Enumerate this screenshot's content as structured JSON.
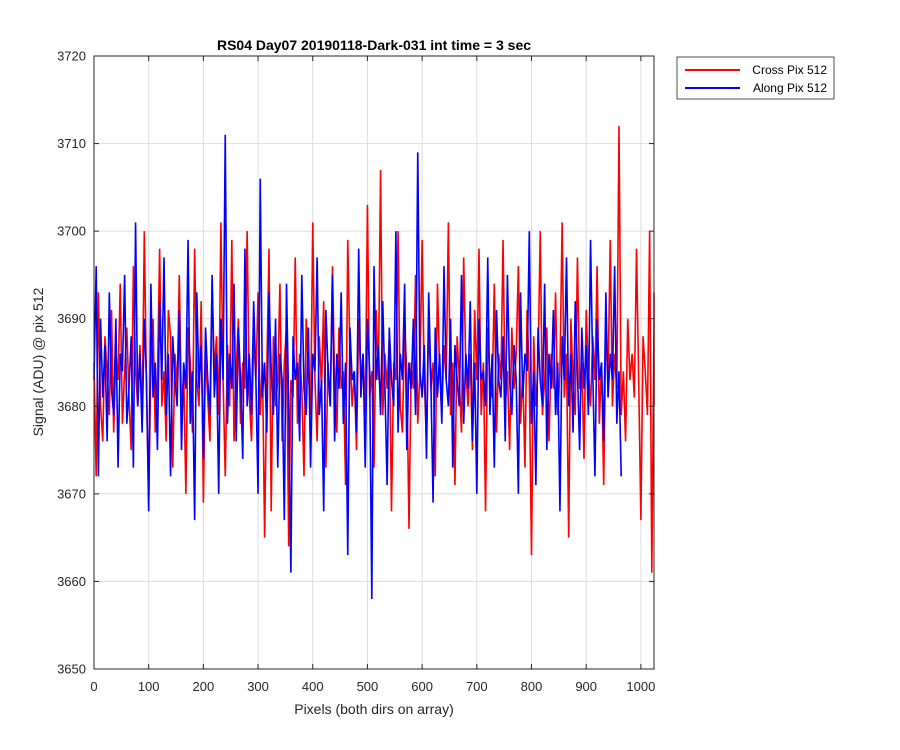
{
  "chart_data": {
    "type": "line",
    "title": "RS04 Day07 20190118-Dark-031 int time = 3 sec",
    "xlabel": "Pixels (both dirs on array)",
    "ylabel": "Signal (ADU) @ pix 512",
    "xlim": [
      0,
      1024
    ],
    "ylim": [
      3650,
      3720
    ],
    "xticks": [
      0,
      100,
      200,
      300,
      400,
      500,
      600,
      700,
      800,
      900,
      1000
    ],
    "yticks": [
      3650,
      3660,
      3670,
      3680,
      3690,
      3700,
      3710,
      3720
    ],
    "xtick_labels": [
      "0",
      "100",
      "200",
      "300",
      "400",
      "500",
      "600",
      "700",
      "800",
      "900",
      "1000"
    ],
    "ytick_labels": [
      "3650",
      "3660",
      "3670",
      "3680",
      "3690",
      "3700",
      "3710",
      "3720"
    ],
    "grid": true,
    "legend_position": "outside-top-right",
    "series": [
      {
        "name": "Cross Pix 512",
        "color": "#ff0000",
        "x_step": 4,
        "values": [
          3685,
          3672,
          3693,
          3680,
          3676,
          3688,
          3684,
          3679,
          3691,
          3677,
          3686,
          3683,
          3694,
          3678,
          3684,
          3689,
          3681,
          3675,
          3696,
          3684,
          3680,
          3687,
          3678,
          3700,
          3682,
          3669,
          3685,
          3690,
          3677,
          3683,
          3698,
          3680,
          3684,
          3676,
          3691,
          3688,
          3673,
          3686,
          3682,
          3695,
          3679,
          3684,
          3670,
          3689,
          3685,
          3677,
          3698,
          3683,
          3680,
          3692,
          3669,
          3686,
          3681,
          3676,
          3694,
          3684,
          3688,
          3679,
          3701,
          3683,
          3672,
          3687,
          3680,
          3699,
          3676,
          3684,
          3690,
          3678,
          3685,
          3682,
          3700,
          3681,
          3676,
          3688,
          3683,
          3693,
          3679,
          3685,
          3665,
          3684,
          3698,
          3668,
          3688,
          3680,
          3683,
          3694,
          3676,
          3685,
          3689,
          3664,
          3683,
          3681,
          3697,
          3678,
          3686,
          3682,
          3672,
          3690,
          3684,
          3679,
          3701,
          3683,
          3676,
          3688,
          3682,
          3692,
          3673,
          3685,
          3680,
          3696,
          3683,
          3677,
          3689,
          3682,
          3684,
          3671,
          3699,
          3686,
          3680,
          3684,
          3675,
          3690,
          3683,
          3686,
          3679,
          3703,
          3681,
          3684,
          3673,
          3691,
          3683,
          3707,
          3679,
          3686,
          3682,
          3688,
          3668,
          3685,
          3683,
          3700,
          3680,
          3677,
          3689,
          3684,
          3666,
          3685,
          3682,
          3695,
          3678,
          3684,
          3699,
          3683,
          3676,
          3690,
          3682,
          3685,
          3672,
          3694,
          3684,
          3679,
          3687,
          3683,
          3701,
          3679,
          3685,
          3671,
          3688,
          3683,
          3677,
          3697,
          3684,
          3680,
          3686,
          3675,
          3691,
          3683,
          3698,
          3679,
          3685,
          3668,
          3689,
          3683,
          3681,
          3694,
          3677,
          3686,
          3683,
          3699,
          3680,
          3684,
          3675,
          3689,
          3682,
          3686,
          3696,
          3678,
          3684,
          3673,
          3691,
          3683,
          3663,
          3688,
          3680,
          3685,
          3700,
          3679,
          3683,
          3689,
          3676,
          3686,
          3682,
          3693,
          3679,
          3684,
          3701,
          3681,
          3686,
          3665,
          3690,
          3683,
          3679,
          3697,
          3682,
          3685,
          3674,
          3691,
          3684,
          3680,
          3688,
          3683,
          3696,
          3678,
          3685,
          3671,
          3689,
          3683,
          3699,
          3680,
          3686,
          3682,
          3712,
          3679,
          3684,
          3676,
          3690,
          3683,
          3686,
          3681,
          3698,
          3683,
          3667,
          3688,
          3684,
          3679,
          3700,
          3661,
          3689,
          3683,
          3685,
          3680,
          3693,
          3684
        ]
      },
      {
        "name": "Along Pix 512",
        "color": "#0000ff",
        "x_step": 4,
        "values": [
          3683,
          3696,
          3672,
          3690,
          3681,
          3687,
          3676,
          3693,
          3682,
          3679,
          3690,
          3673,
          3686,
          3684,
          3695,
          3678,
          3682,
          3688,
          3673,
          3701,
          3680,
          3686,
          3677,
          3690,
          3683,
          3668,
          3694,
          3681,
          3685,
          3675,
          3692,
          3683,
          3697,
          3679,
          3686,
          3672,
          3688,
          3683,
          3680,
          3691,
          3675,
          3685,
          3682,
          3699,
          3678,
          3684,
          3667,
          3693,
          3682,
          3687,
          3674,
          3689,
          3683,
          3679,
          3695,
          3681,
          3686,
          3670,
          3690,
          3683,
          3711,
          3678,
          3686,
          3682,
          3694,
          3676,
          3689,
          3683,
          3674,
          3698,
          3680,
          3686,
          3679,
          3692,
          3683,
          3670,
          3706,
          3681,
          3685,
          3677,
          3693,
          3684,
          3679,
          3690,
          3673,
          3686,
          3683,
          3667,
          3694,
          3680,
          3661,
          3688,
          3683,
          3685,
          3676,
          3695,
          3682,
          3679,
          3689,
          3673,
          3686,
          3684,
          3697,
          3679,
          3683,
          3668,
          3691,
          3684,
          3680,
          3695,
          3676,
          3686,
          3682,
          3693,
          3678,
          3685,
          3663,
          3689,
          3683,
          3684,
          3677,
          3698,
          3681,
          3686,
          3673,
          3690,
          3684,
          3658,
          3696,
          3683,
          3687,
          3679,
          3692,
          3682,
          3671,
          3689,
          3683,
          3680,
          3700,
          3677,
          3686,
          3683,
          3694,
          3675,
          3685,
          3682,
          3690,
          3679,
          3709,
          3684,
          3681,
          3687,
          3674,
          3693,
          3683,
          3669,
          3689,
          3681,
          3686,
          3678,
          3696,
          3683,
          3680,
          3690,
          3673,
          3687,
          3683,
          3680,
          3695,
          3678,
          3686,
          3682,
          3692,
          3676,
          3685,
          3670,
          3690,
          3683,
          3684,
          3680,
          3697,
          3679,
          3686,
          3673,
          3691,
          3683,
          3681,
          3688,
          3676,
          3695,
          3683,
          3679,
          3687,
          3683,
          3670,
          3693,
          3681,
          3686,
          3684,
          3700,
          3678,
          3684,
          3671,
          3689,
          3683,
          3680,
          3694,
          3675,
          3686,
          3682,
          3691,
          3679,
          3685,
          3668,
          3688,
          3683,
          3697,
          3680,
          3686,
          3677,
          3692,
          3684,
          3675,
          3689,
          3682,
          3687,
          3679,
          3699,
          3684,
          3672,
          3690,
          3683,
          3685,
          3676,
          3693,
          3681,
          3686,
          3683,
          3696,
          3678,
          3684,
          3672
        ]
      }
    ]
  }
}
